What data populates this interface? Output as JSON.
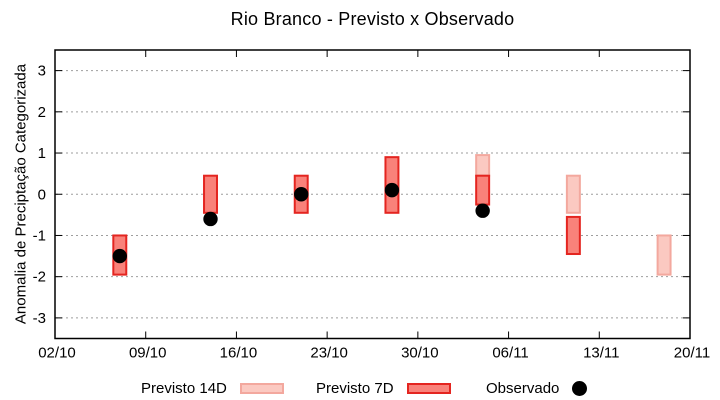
{
  "chart_data": {
    "type": "bar",
    "title": "Rio Branco - Previsto x Observado",
    "ylabel": "Anomalia de Preciptação Categorizada",
    "xlabel": "",
    "ylim": [
      -3.5,
      3.5
    ],
    "yticks": [
      -3,
      -2,
      -1,
      0,
      1,
      2,
      3
    ],
    "xlim_days": [
      0,
      49
    ],
    "xtick_days": [
      0,
      7,
      14,
      21,
      28,
      35,
      42,
      49
    ],
    "xtick_labels": [
      "02/10",
      "09/10",
      "16/10",
      "23/10",
      "30/10",
      "06/11",
      "13/11",
      "20/11"
    ],
    "grid": true,
    "grid_color": "#9e9e9e",
    "frame_color": "#000000",
    "legend_position": "bottom",
    "bar_width_days": 1,
    "series": [
      {
        "name": "Previsto 14D",
        "type": "range-bar",
        "color": "#fbc9c1",
        "border": "#f3a89e",
        "points": [
          {
            "date": "04/11",
            "day": 33,
            "low": 0.45,
            "high": 0.95
          },
          {
            "date": "11/11",
            "day": 40,
            "low": -0.45,
            "high": 0.45
          },
          {
            "date": "18/11",
            "day": 47,
            "low": -1.95,
            "high": -1.0
          }
        ]
      },
      {
        "name": "Previsto 7D",
        "type": "range-bar",
        "color": "#f9827a",
        "border": "#e42520",
        "points": [
          {
            "date": "07/10",
            "day": 5,
            "low": -1.95,
            "high": -1.0
          },
          {
            "date": "14/10",
            "day": 12,
            "low": -0.45,
            "high": 0.45
          },
          {
            "date": "21/10",
            "day": 19,
            "low": -0.45,
            "high": 0.45
          },
          {
            "date": "28/10",
            "day": 26,
            "low": -0.45,
            "high": 0.9
          },
          {
            "date": "04/11",
            "day": 33,
            "low": -0.25,
            "high": 0.45
          },
          {
            "date": "11/11",
            "day": 40,
            "low": -1.45,
            "high": -0.55
          }
        ]
      },
      {
        "name": "Observado",
        "type": "scatter",
        "color": "#000000",
        "points": [
          {
            "date": "07/10",
            "day": 5,
            "value": -1.5
          },
          {
            "date": "14/10",
            "day": 12,
            "value": -0.6
          },
          {
            "date": "21/10",
            "day": 19,
            "value": 0.0
          },
          {
            "date": "28/10",
            "day": 26,
            "value": 0.1
          },
          {
            "date": "04/11",
            "day": 33,
            "value": -0.4
          }
        ]
      }
    ]
  }
}
